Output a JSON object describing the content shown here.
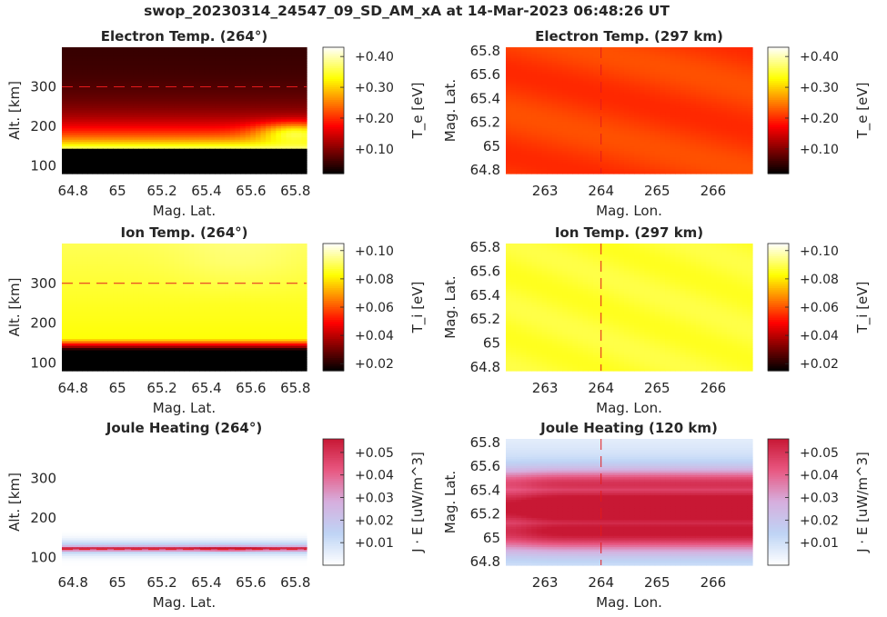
{
  "figure": {
    "suptitle": "swop_20230314_24547_09_SD_AM_xA at 14-Mar-2023 06:48:26 UT"
  },
  "chart_data": [
    {
      "id": "te_alt",
      "type": "heatmap",
      "title": "Electron Temp. (264°)",
      "xlabel": "Mag. Lat.",
      "ylabel": "Alt. [km]",
      "xlim": [
        64.75,
        65.85
      ],
      "ylim": [
        80,
        400
      ],
      "xticks": [
        "64.8",
        "65",
        "65.2",
        "65.4",
        "65.6",
        "65.8"
      ],
      "yticks": [
        "100",
        "200",
        "300"
      ],
      "colormap": "hot",
      "colorbar": {
        "label": "T_e [eV]",
        "ticks": [
          "+0.10",
          "+0.20",
          "+0.30",
          "+0.40"
        ],
        "range": [
          0.02,
          0.43
        ]
      },
      "reference_line": {
        "axis": "y",
        "value": 300,
        "color": "#e31a1c"
      },
      "profile": {
        "layer_peak_alt_km": 185,
        "peak_value": 0.43,
        "upper_value": 0.05,
        "lower_value": 0.0
      }
    },
    {
      "id": "te_map",
      "type": "heatmap",
      "title": "Electron Temp. (297 km)",
      "xlabel": "Mag. Lon.",
      "ylabel": "Mag. Lat.",
      "xlim": [
        262.3,
        266.7
      ],
      "ylim": [
        64.77,
        65.83
      ],
      "xticks": [
        "263",
        "264",
        "265",
        "266"
      ],
      "yticks": [
        "64.8",
        "65",
        "65.2",
        "65.4",
        "65.6",
        "65.8"
      ],
      "colormap": "hot",
      "colorbar": {
        "label": "T_e [eV]",
        "ticks": [
          "+0.10",
          "+0.20",
          "+0.30",
          "+0.40"
        ],
        "range": [
          0.02,
          0.43
        ]
      },
      "reference_line": {
        "axis": "x",
        "value": 264,
        "color": "#e31a1c"
      },
      "profile": {
        "mean_value": 0.21
      }
    },
    {
      "id": "ti_alt",
      "type": "heatmap",
      "title": "Ion Temp. (264°)",
      "xlabel": "Mag. Lat.",
      "ylabel": "Alt. [km]",
      "xlim": [
        64.75,
        65.85
      ],
      "ylim": [
        80,
        400
      ],
      "xticks": [
        "64.8",
        "65",
        "65.2",
        "65.4",
        "65.6",
        "65.8"
      ],
      "yticks": [
        "100",
        "200",
        "300"
      ],
      "colormap": "hot",
      "colorbar": {
        "label": "T_i [eV]",
        "ticks": [
          "+0.02",
          "+0.04",
          "+0.06",
          "+0.08",
          "+0.10"
        ],
        "range": [
          0.015,
          0.105
        ]
      },
      "reference_line": {
        "axis": "y",
        "value": 300,
        "color": "#e31a1c"
      },
      "profile": {
        "top_value": 0.09,
        "layer_value": 0.083,
        "lower_value": 0.0
      }
    },
    {
      "id": "ti_map",
      "type": "heatmap",
      "title": "Ion Temp. (297 km)",
      "xlabel": "Mag. Lon.",
      "ylabel": "Mag. Lat.",
      "xlim": [
        262.3,
        266.7
      ],
      "ylim": [
        64.77,
        65.83
      ],
      "xticks": [
        "263",
        "264",
        "265",
        "266"
      ],
      "yticks": [
        "64.8",
        "65",
        "65.2",
        "65.4",
        "65.6",
        "65.8"
      ],
      "colormap": "hot",
      "colorbar": {
        "label": "T_i [eV]",
        "ticks": [
          "+0.02",
          "+0.04",
          "+0.06",
          "+0.08",
          "+0.10"
        ],
        "range": [
          0.015,
          0.105
        ]
      },
      "reference_line": {
        "axis": "x",
        "value": 264,
        "color": "#e31a1c"
      },
      "profile": {
        "mean_value": 0.087
      }
    },
    {
      "id": "jh_alt",
      "type": "heatmap",
      "title": "Joule Heating (264°)",
      "xlabel": "Mag. Lat.",
      "ylabel": "Alt. [km]",
      "xlim": [
        64.75,
        65.85
      ],
      "ylim": [
        80,
        400
      ],
      "xticks": [
        "64.8",
        "65",
        "65.2",
        "65.4",
        "65.6",
        "65.8"
      ],
      "yticks": [
        "100",
        "200",
        "300"
      ],
      "colormap": "white-blue-red",
      "colorbar": {
        "label": "J · E [uW/m^3]",
        "ticks": [
          "+0.01",
          "+0.02",
          "+0.03",
          "+0.04",
          "+0.05"
        ],
        "range": [
          0.0,
          0.056
        ]
      },
      "reference_line": {
        "axis": "y",
        "value": 120,
        "color": "#e31a1c"
      },
      "profile": {
        "layer_alt_km": 122,
        "peak_value": 0.05
      }
    },
    {
      "id": "jh_map",
      "type": "heatmap",
      "title": "Joule Heating (120 km)",
      "xlabel": "Mag. Lon.",
      "ylabel": "Mag. Lat.",
      "xlim": [
        262.3,
        266.7
      ],
      "ylim": [
        64.77,
        65.83
      ],
      "xticks": [
        "263",
        "264",
        "265",
        "266"
      ],
      "yticks": [
        "64.8",
        "65",
        "65.2",
        "65.4",
        "65.6",
        "65.8"
      ],
      "colormap": "white-blue-red",
      "colorbar": {
        "label": "J · E [uW/m^3]",
        "ticks": [
          "+0.01",
          "+0.02",
          "+0.03",
          "+0.04",
          "+0.05"
        ],
        "range": [
          0.0,
          0.056
        ]
      },
      "reference_line": {
        "axis": "x",
        "value": 264,
        "color": "#e31a1c"
      },
      "profile": {
        "band_lat_center": 65.25,
        "peak_value": 0.05
      }
    }
  ]
}
